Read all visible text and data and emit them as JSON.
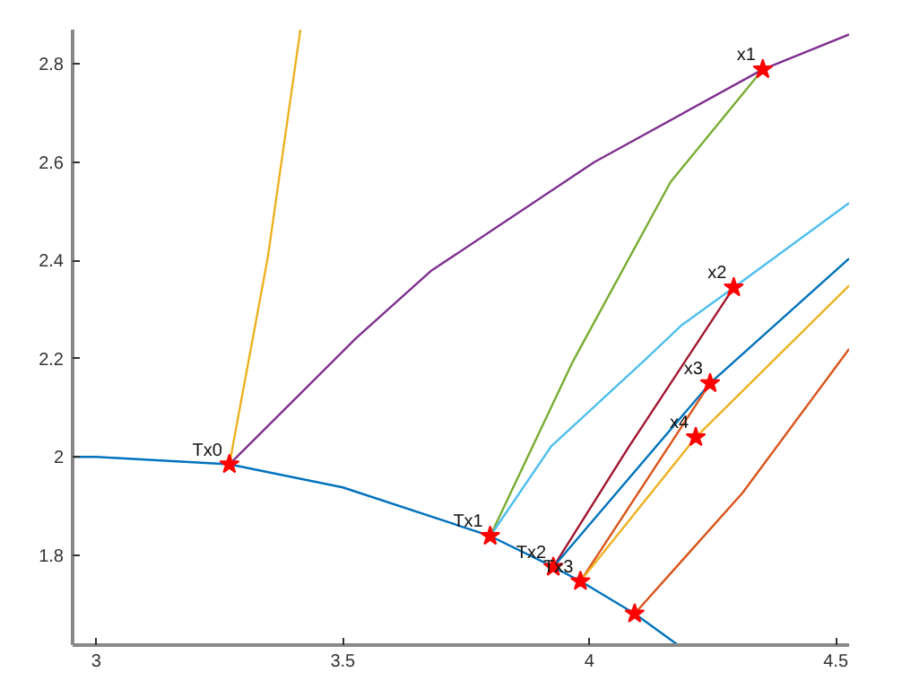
{
  "chart_data": {
    "type": "line",
    "xlim": [
      2.952,
      4.527
    ],
    "ylim": [
      1.617,
      2.87
    ],
    "xticks": [
      3,
      3.5,
      4,
      4.5
    ],
    "yticks": [
      1.8,
      2,
      2.2,
      2.4,
      2.6,
      2.8
    ],
    "grid": false,
    "line_style": "solid",
    "series": [
      {
        "color": "#0072bd",
        "x": [
          2.952,
          3.0,
          3.27,
          3.5,
          3.799,
          3.927,
          3.982,
          4.092,
          4.18
        ],
        "values": [
          2.0,
          2.0,
          1.985,
          1.938,
          1.839,
          1.776,
          1.747,
          1.681,
          1.617
        ]
      },
      {
        "color": "#edb120",
        "x": [
          3.27,
          3.348,
          3.414
        ],
        "values": [
          1.985,
          2.407,
          2.87
        ]
      },
      {
        "color": "#7e2f8e",
        "x": [
          3.27,
          3.527,
          3.678,
          4.01,
          4.352,
          4.527
        ],
        "values": [
          1.985,
          2.242,
          2.378,
          2.6,
          2.789,
          2.86
        ]
      },
      {
        "color": "#77ac30",
        "x": [
          3.799,
          3.967,
          4.165,
          4.352
        ],
        "values": [
          1.839,
          2.195,
          2.56,
          2.789
        ]
      },
      {
        "color": "#4dbeee",
        "x": [
          3.799,
          3.923,
          4.11,
          4.187,
          4.293,
          4.527
        ],
        "values": [
          1.839,
          2.022,
          2.195,
          2.268,
          2.345,
          2.517
        ]
      },
      {
        "color": "#a2142f",
        "x": [
          3.927,
          4.081,
          4.293
        ],
        "values": [
          1.776,
          2.022,
          2.345
        ]
      },
      {
        "color": "#0072bd",
        "x": [
          3.927,
          4.245,
          4.527
        ],
        "values": [
          1.776,
          2.15,
          2.404
        ]
      },
      {
        "color": "#d95319",
        "x": [
          3.982,
          4.245
        ],
        "values": [
          1.747,
          2.15
        ]
      },
      {
        "color": "#edb120",
        "x": [
          3.982,
          4.216,
          4.527
        ],
        "values": [
          1.747,
          2.04,
          2.349
        ]
      },
      {
        "color": "#d95319",
        "x": [
          4.092,
          4.311,
          4.527
        ],
        "values": [
          1.681,
          1.927,
          2.22
        ]
      },
      {
        "type": "scatter",
        "marker": "star",
        "color": "#ff0000",
        "x": [
          3.27,
          3.799,
          3.927,
          3.982,
          4.092,
          4.352,
          4.293,
          4.245,
          4.216
        ],
        "values": [
          1.985,
          1.839,
          1.776,
          1.747,
          1.681,
          2.789,
          2.345,
          2.15,
          2.04
        ]
      }
    ],
    "annotations": [
      {
        "text": "Tx0",
        "x": 3.27,
        "y": 1.985
      },
      {
        "text": "Tx1",
        "x": 3.799,
        "y": 1.839
      },
      {
        "text": "Tx2",
        "x": 3.927,
        "y": 1.776
      },
      {
        "text": "Tx3",
        "x": 3.982,
        "y": 1.747
      },
      {
        "text": "x1",
        "x": 4.352,
        "y": 2.789
      },
      {
        "text": "x2",
        "x": 4.293,
        "y": 2.345
      },
      {
        "text": "x3",
        "x": 4.245,
        "y": 2.15
      },
      {
        "text": "x4",
        "x": 4.216,
        "y": 2.04
      }
    ]
  }
}
